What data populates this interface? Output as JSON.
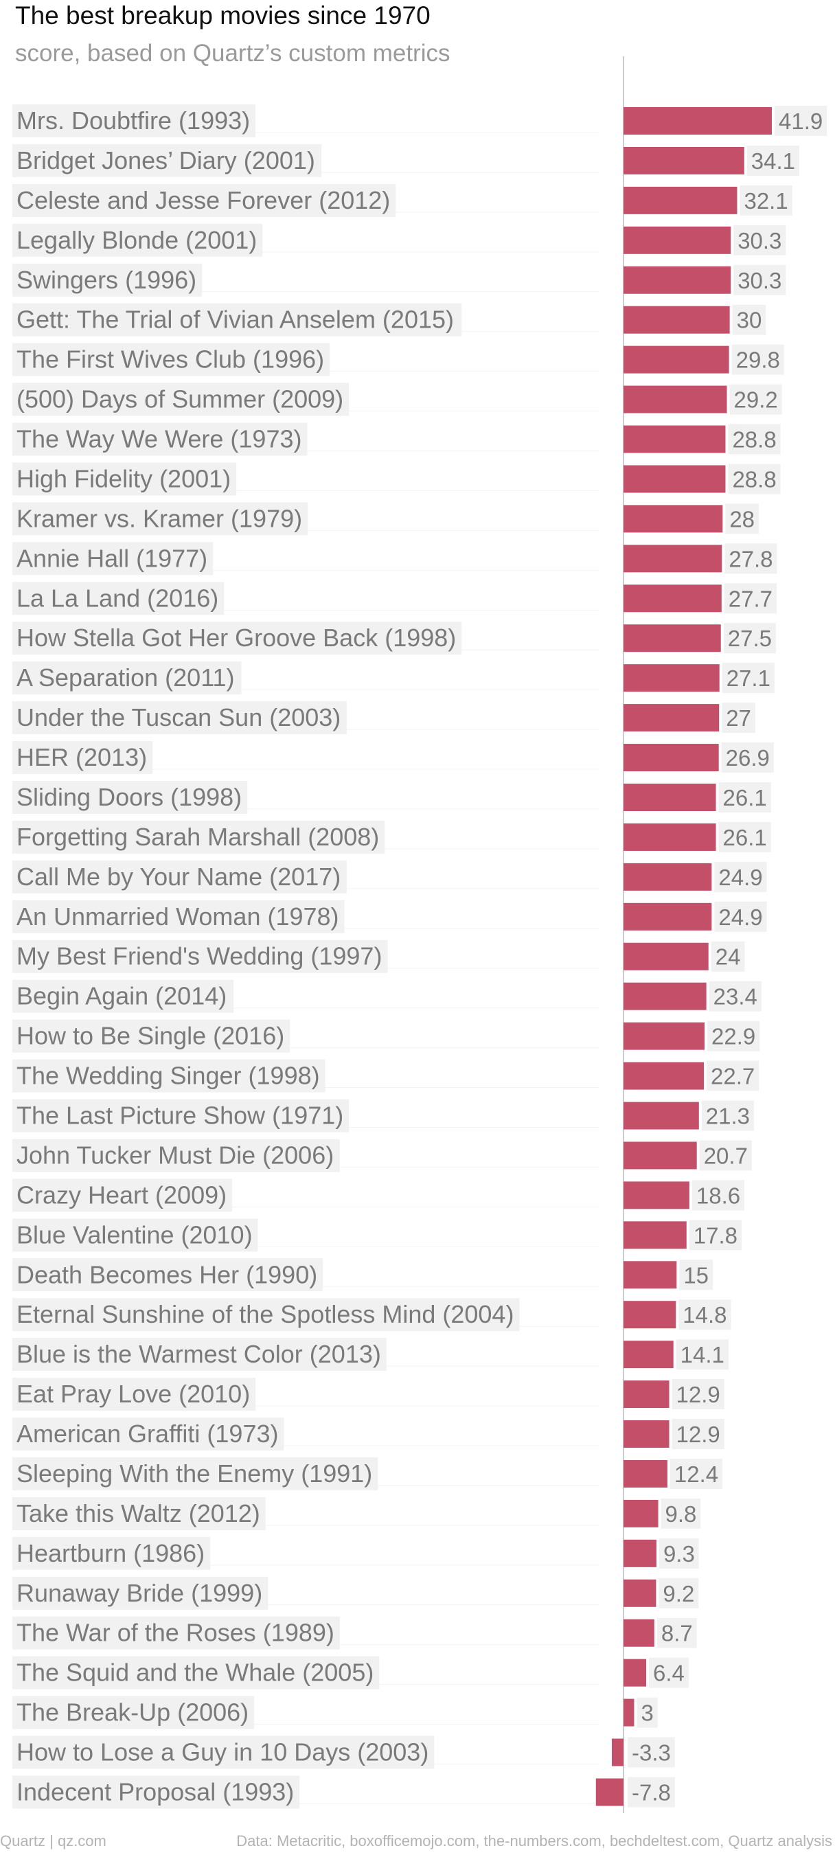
{
  "chart_data": {
    "type": "bar",
    "orientation": "horizontal",
    "title": "The best breakup movies since 1970",
    "subtitle": "score, based on Quartz’s custom metrics",
    "categories": [
      "Mrs. Doubtfire (1993)",
      "Bridget Jones’ Diary (2001)",
      "Celeste and Jesse Forever (2012)",
      "Legally Blonde (2001)",
      "Swingers (1996)",
      "Gett: The Trial of Vivian Anselem (2015)",
      "The First Wives Club (1996)",
      "(500) Days of Summer (2009)",
      "The Way We Were (1973)",
      "High Fidelity (2001)",
      "Kramer vs. Kramer (1979)",
      "Annie Hall (1977)",
      "La La Land (2016)",
      "How Stella Got Her Groove Back (1998)",
      "A Separation (2011)",
      "Under the Tuscan Sun (2003)",
      "HER (2013)",
      "Sliding Doors (1998)",
      "Forgetting Sarah Marshall (2008)",
      "Call Me by Your Name (2017)",
      "An Unmarried Woman (1978)",
      "My Best Friend's Wedding (1997)",
      "Begin Again (2014)",
      "How to Be Single (2016)",
      "The Wedding Singer (1998)",
      "The Last Picture Show (1971)",
      "John Tucker Must Die (2006)",
      "Crazy Heart (2009)",
      "Blue Valentine (2010)",
      "Death Becomes Her (1990)",
      "Eternal Sunshine of the Spotless Mind (2004)",
      "Blue is the Warmest Color (2013)",
      "Eat Pray Love (2010)",
      "American Graffiti (1973)",
      "Sleeping With the Enemy (1991)",
      "Take this Waltz (2012)",
      "Heartburn (1986)",
      "Runaway Bride (1999)",
      "The War of the Roses (1989)",
      "The Squid and the Whale (2005)",
      "The Break-Up (2006)",
      "How to Lose a Guy in 10 Days (2003)",
      "Indecent Proposal (1993)"
    ],
    "values": [
      41.9,
      34.1,
      32.1,
      30.3,
      30.3,
      30,
      29.8,
      29.2,
      28.8,
      28.8,
      28,
      27.8,
      27.7,
      27.5,
      27.1,
      27,
      26.9,
      26.1,
      26.1,
      24.9,
      24.9,
      24,
      23.4,
      22.9,
      22.7,
      21.3,
      20.7,
      18.6,
      17.8,
      15,
      14.8,
      14.1,
      12.9,
      12.9,
      12.4,
      9.8,
      9.3,
      9.2,
      8.7,
      6.4,
      3,
      -3.3,
      -7.8
    ],
    "value_labels": [
      "41.9",
      "34.1",
      "32.1",
      "30.3",
      "30.3",
      "30",
      "29.8",
      "29.2",
      "28.8",
      "28.8",
      "28",
      "27.8",
      "27.7",
      "27.5",
      "27.1",
      "27",
      "26.9",
      "26.1",
      "26.1",
      "24.9",
      "24.9",
      "24",
      "23.4",
      "22.9",
      "22.7",
      "21.3",
      "20.7",
      "18.6",
      "17.8",
      "15",
      "14.8",
      "14.1",
      "12.9",
      "12.9",
      "12.4",
      "9.8",
      "9.3",
      "9.2",
      "8.7",
      "6.4",
      "3",
      "-3.3",
      "-7.8"
    ],
    "xlim": [
      -7.8,
      41.9
    ],
    "grid": false,
    "legend": "none",
    "colors": {
      "bar": "#c34f68",
      "label_background": "#f1f1f1",
      "value_label_background": "#f1f1f1",
      "label_text": "#7a7a7a",
      "zero_line": "#cccccc",
      "row_rule": "#f3f3f3"
    }
  },
  "footer": {
    "credit": "Quartz | qz.com",
    "source": "Data: Metacritic, boxofficemojo.com, the-numbers.com, bechdeltest.com, Quartz analysis"
  }
}
